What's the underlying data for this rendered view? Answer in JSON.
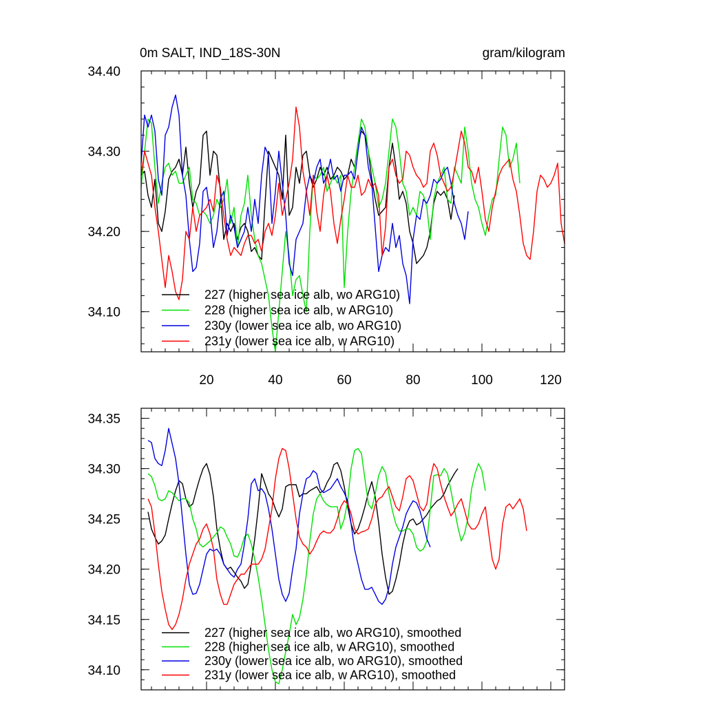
{
  "chart_data": [
    {
      "type": "line",
      "title": "0m SALT, IND_18S-30N",
      "units": "gram/kilogram",
      "xlim": [
        1,
        124
      ],
      "ylim": [
        34.05,
        34.4
      ],
      "xticks": [
        20,
        40,
        60,
        80,
        100,
        120
      ],
      "xtick_labels": [
        "20",
        "40",
        "60",
        "80",
        "100",
        "120"
      ],
      "yticks": [
        34.1,
        34.2,
        34.3,
        34.4
      ],
      "ytick_labels": [
        "34.10",
        "34.20",
        "34.30",
        "34.40"
      ],
      "legend_location": "bottom-left",
      "series": [
        {
          "name": "227 (higher sea ice alb, wo ARG10)",
          "color": "#000000",
          "x_start": 1,
          "values": [
            34.27,
            34.275,
            34.245,
            34.23,
            34.265,
            34.21,
            34.2,
            34.225,
            34.265,
            34.275,
            34.28,
            34.29,
            34.27,
            34.305,
            34.26,
            34.23,
            34.25,
            34.26,
            34.32,
            34.325,
            34.27,
            34.3,
            34.295,
            34.25,
            34.19,
            34.21,
            34.2,
            34.21,
            34.19,
            34.205,
            34.21,
            34.2,
            34.175,
            34.18,
            34.17,
            34.165,
            34.235,
            34.3,
            34.29,
            34.28,
            34.27,
            34.24,
            34.32,
            34.22,
            34.23,
            34.28,
            34.26,
            34.295,
            34.3,
            34.27,
            34.255,
            34.265,
            34.28,
            34.27,
            34.28,
            34.265,
            34.27,
            34.28,
            34.275,
            34.265,
            34.27,
            34.29,
            34.28,
            34.31,
            34.325,
            34.32,
            34.3,
            34.265,
            34.24,
            34.22,
            34.225,
            34.23,
            34.28,
            34.31,
            34.28,
            34.24,
            34.25,
            34.235,
            34.2,
            34.185,
            34.16,
            34.165,
            34.17,
            34.18,
            34.2,
            34.235,
            34.25,
            34.245,
            34.25,
            34.24,
            34.215,
            34.245
          ]
        },
        {
          "name": "228 (higher sea ice alb, w ARG10)",
          "color": "#00e000",
          "x_start": 1,
          "values": [
            34.255,
            34.3,
            34.34,
            34.335,
            34.28,
            34.235,
            34.26,
            34.28,
            34.285,
            34.27,
            34.275,
            34.26,
            34.26,
            34.27,
            34.28,
            34.24,
            34.235,
            34.22,
            34.225,
            34.22,
            34.21,
            34.22,
            34.24,
            34.23,
            34.24,
            34.265,
            34.21,
            34.23,
            34.18,
            34.22,
            34.235,
            34.27,
            34.22,
            34.19,
            34.17,
            34.16,
            34.14,
            34.12,
            34.08,
            34.05,
            34.1,
            34.15,
            34.2,
            34.17,
            34.12,
            34.14,
            34.145,
            34.12,
            34.1,
            34.2,
            34.27,
            34.265,
            34.27,
            34.28,
            34.25,
            34.26,
            34.27,
            34.26,
            34.27,
            34.13,
            34.2,
            34.25,
            34.28,
            34.31,
            34.34,
            34.33,
            34.3,
            34.28,
            34.26,
            34.23,
            34.24,
            34.26,
            34.3,
            34.34,
            34.33,
            34.3,
            34.26,
            34.25,
            34.22,
            34.23,
            34.22,
            34.25,
            34.245,
            34.23,
            34.19,
            34.24,
            34.26,
            34.27,
            34.28,
            34.24,
            34.235,
            34.28,
            34.27,
            34.26,
            34.33,
            34.3,
            34.26,
            34.24,
            34.23,
            34.21,
            34.195,
            34.22,
            34.24,
            34.245,
            34.29,
            34.33,
            34.32,
            34.28,
            34.29,
            34.31,
            34.26
          ]
        },
        {
          "name": "230y (lower sea ice alb, wo ARG10)",
          "color": "#0000e0",
          "x_start": 1,
          "values": [
            34.285,
            34.345,
            34.33,
            34.345,
            34.325,
            34.265,
            34.245,
            34.32,
            34.33,
            34.355,
            34.37,
            34.345,
            34.27,
            34.245,
            34.19,
            34.15,
            34.155,
            34.185,
            34.25,
            34.255,
            34.225,
            34.18,
            34.2,
            34.24,
            34.25,
            34.195,
            34.22,
            34.205,
            34.18,
            34.19,
            34.2,
            34.23,
            34.2,
            34.24,
            34.21,
            34.27,
            34.305,
            34.295,
            34.21,
            34.25,
            34.3,
            34.26,
            34.22,
            34.16,
            34.145,
            34.19,
            34.2,
            34.21,
            34.25,
            34.27,
            34.26,
            34.28,
            34.29,
            34.26,
            34.27,
            34.29,
            34.265,
            34.27,
            34.25,
            34.27,
            34.27,
            34.275,
            34.265,
            34.3,
            34.33,
            34.32,
            34.28,
            34.26,
            34.205,
            34.15,
            34.17,
            34.18,
            34.175,
            34.21,
            34.18,
            34.195,
            34.16,
            34.145,
            34.11,
            34.19,
            34.22,
            34.215,
            34.24,
            34.235,
            34.245,
            34.265,
            34.26,
            34.265,
            34.275,
            34.28,
            34.26,
            34.235,
            34.22,
            34.21,
            34.19,
            34.225
          ]
        },
        {
          "name": "231y (lower sea ice alb, w ARG10)",
          "color": "#ff0000",
          "x_start": 1,
          "values": [
            34.27,
            34.3,
            34.285,
            34.27,
            34.23,
            34.2,
            34.165,
            34.13,
            34.17,
            34.15,
            34.125,
            34.115,
            34.14,
            34.2,
            34.19,
            34.23,
            34.2,
            34.22,
            34.225,
            34.23,
            34.24,
            34.225,
            34.27,
            34.255,
            34.22,
            34.19,
            34.17,
            34.18,
            34.175,
            34.17,
            34.185,
            34.195,
            34.195,
            34.185,
            34.19,
            34.175,
            34.2,
            34.21,
            34.195,
            34.22,
            34.26,
            34.22,
            34.24,
            34.26,
            34.29,
            34.355,
            34.33,
            34.275,
            34.25,
            34.22,
            34.27,
            34.225,
            34.2,
            34.245,
            34.27,
            34.25,
            34.21,
            34.185,
            34.215,
            34.24,
            34.27,
            34.255,
            34.255,
            34.27,
            34.245,
            34.25,
            34.265,
            34.255,
            34.26,
            34.245,
            34.17,
            34.205,
            34.28,
            34.29,
            34.27,
            34.26,
            34.265,
            34.3,
            34.295,
            34.28,
            34.27,
            34.265,
            34.255,
            34.26,
            34.3,
            34.31,
            34.295,
            34.27,
            34.26,
            34.25,
            34.255,
            34.275,
            34.3,
            34.325,
            34.31,
            34.28,
            34.275,
            34.26,
            34.28,
            34.25,
            34.215,
            34.2,
            34.23,
            34.25,
            34.27,
            34.28,
            34.285,
            34.29,
            34.265,
            34.25,
            34.22,
            34.185,
            34.17,
            34.165,
            34.2,
            34.25,
            34.27,
            34.265,
            34.255,
            34.26,
            34.27,
            34.285,
            34.21,
            34.185
          ]
        }
      ]
    },
    {
      "type": "line",
      "title": "",
      "xlim": [
        1,
        124
      ],
      "ylim": [
        34.08,
        34.36
      ],
      "xticks": [
        20,
        40,
        60,
        80,
        100,
        120
      ],
      "xtick_labels": [],
      "yticks": [
        34.1,
        34.15,
        34.2,
        34.25,
        34.3,
        34.35
      ],
      "ytick_labels": [
        "34.10",
        "34.15",
        "34.20",
        "34.25",
        "34.30",
        "34.35"
      ],
      "legend_location": "bottom-left",
      "series": [
        {
          "name": "227 (higher sea ice alb, wo ARG10), smoothed",
          "color": "#000000",
          "x_start": 3,
          "values": [
            34.257,
            34.24,
            34.232,
            34.225,
            34.228,
            34.234,
            34.25,
            34.265,
            34.278,
            34.288,
            34.285,
            34.27,
            34.262,
            34.265,
            34.278,
            34.29,
            34.3,
            34.305,
            34.294,
            34.272,
            34.24,
            34.22,
            34.205,
            34.2,
            34.202,
            34.197,
            34.192,
            34.188,
            34.181,
            34.185,
            34.205,
            34.23,
            34.26,
            34.295,
            34.285,
            34.275,
            34.27,
            34.26,
            34.252,
            34.26,
            34.282,
            34.284,
            34.284,
            34.284,
            34.272,
            34.275,
            34.275,
            34.278,
            34.28,
            34.282,
            34.276,
            34.278,
            34.286,
            34.292,
            34.304,
            34.306,
            34.298,
            34.282,
            34.262,
            34.245,
            34.235,
            34.24,
            34.25,
            34.262,
            34.276,
            34.287,
            34.272,
            34.246,
            34.215,
            34.192,
            34.175,
            34.178,
            34.19,
            34.205,
            34.225,
            34.24,
            34.248,
            34.25,
            34.244,
            34.246,
            34.25,
            34.254,
            34.26,
            34.264,
            34.268,
            34.27,
            34.275,
            34.283,
            34.289,
            34.295,
            34.3
          ]
        },
        {
          "name": "228 (higher sea ice alb, w ARG10), smoothed",
          "color": "#00e000",
          "x_start": 3,
          "values": [
            34.295,
            34.292,
            34.283,
            34.27,
            34.268,
            34.27,
            34.278,
            34.276,
            34.272,
            34.268,
            34.27,
            34.27,
            34.266,
            34.25,
            34.24,
            34.225,
            34.222,
            34.225,
            34.228,
            34.232,
            34.236,
            34.242,
            34.24,
            34.232,
            34.225,
            34.213,
            34.212,
            34.22,
            34.232,
            34.235,
            34.225,
            34.21,
            34.192,
            34.17,
            34.145,
            34.12,
            34.1,
            34.088,
            34.086,
            34.1,
            34.118,
            34.135,
            34.155,
            34.145,
            34.152,
            34.17,
            34.195,
            34.228,
            34.255,
            34.27,
            34.275,
            34.268,
            34.264,
            34.262,
            34.262,
            34.262,
            34.24,
            34.25,
            34.268,
            34.3,
            34.318,
            34.32,
            34.315,
            34.29,
            34.265,
            34.26,
            34.275,
            34.293,
            34.302,
            34.296,
            34.275,
            34.258,
            34.245,
            34.238,
            34.238,
            34.24,
            34.24,
            34.235,
            34.222,
            34.218,
            34.22,
            34.228,
            34.26,
            34.293,
            34.294,
            34.293,
            34.3,
            34.295,
            34.278,
            34.26,
            34.242,
            34.228,
            34.236,
            34.252,
            34.28,
            34.295,
            34.305,
            34.298,
            34.278
          ]
        },
        {
          "name": "230y (lower sea ice alb, wo ARG10), smoothed",
          "color": "#0000e0",
          "x_start": 3,
          "values": [
            34.328,
            34.326,
            34.31,
            34.305,
            34.303,
            34.318,
            34.34,
            34.325,
            34.31,
            34.285,
            34.25,
            34.215,
            34.185,
            34.175,
            34.176,
            34.185,
            34.2,
            34.215,
            34.22,
            34.218,
            34.22,
            34.215,
            34.205,
            34.2,
            34.195,
            34.192,
            34.2,
            34.205,
            34.225,
            34.25,
            34.285,
            34.29,
            34.278,
            34.28,
            34.275,
            34.26,
            34.24,
            34.215,
            34.19,
            34.175,
            34.168,
            34.176,
            34.2,
            34.22,
            34.255,
            34.275,
            34.29,
            34.292,
            34.298,
            34.295,
            34.28,
            34.276,
            34.278,
            34.28,
            34.285,
            34.29,
            34.282,
            34.276,
            34.268,
            34.245,
            34.22,
            34.205,
            34.19,
            34.18,
            34.18,
            34.182,
            34.175,
            34.168,
            34.165,
            34.17,
            34.182,
            34.205,
            34.222,
            34.232,
            34.242,
            34.255,
            34.262,
            34.268,
            34.266,
            34.258,
            34.245,
            34.23,
            34.222
          ]
        },
        {
          "name": "231y (lower sea ice alb, w ARG10), smoothed",
          "color": "#ff0000",
          "x_start": 3,
          "values": [
            34.27,
            34.262,
            34.236,
            34.205,
            34.178,
            34.16,
            34.145,
            34.14,
            34.145,
            34.155,
            34.17,
            34.19,
            34.205,
            34.215,
            34.225,
            34.23,
            34.24,
            34.245,
            34.235,
            34.22,
            34.19,
            34.175,
            34.165,
            34.165,
            34.175,
            34.185,
            34.19,
            34.195,
            34.195,
            34.2,
            34.205,
            34.205,
            34.205,
            34.21,
            34.22,
            34.24,
            34.26,
            34.29,
            34.31,
            34.32,
            34.318,
            34.3,
            34.275,
            34.25,
            34.232,
            34.225,
            34.222,
            34.215,
            34.22,
            34.228,
            34.235,
            34.238,
            34.236,
            34.236,
            34.24,
            34.25,
            34.262,
            34.268,
            34.265,
            34.255,
            34.24,
            34.235,
            34.237,
            34.238,
            34.24,
            34.25,
            34.264,
            34.27,
            34.272,
            34.278,
            34.282,
            34.272,
            34.262,
            34.258,
            34.272,
            34.29,
            34.293,
            34.288,
            34.275,
            34.262,
            34.258,
            34.265,
            34.29,
            34.305,
            34.3,
            34.285,
            34.272,
            34.262,
            34.253,
            34.258,
            34.265,
            34.27,
            34.258,
            34.245,
            34.24,
            34.24,
            34.245,
            34.255,
            34.262,
            34.235,
            34.21,
            34.2,
            34.21,
            34.245,
            34.262,
            34.265,
            34.26,
            34.265,
            34.27,
            34.26,
            34.238
          ]
        }
      ]
    }
  ]
}
